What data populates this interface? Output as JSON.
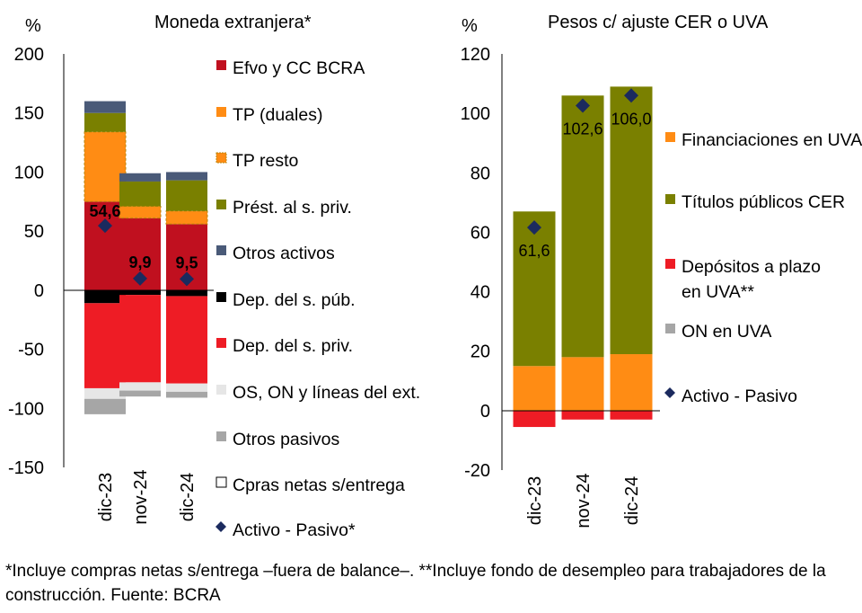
{
  "colors": {
    "efvo": "#C0101F",
    "tp_duales": "#FF8C14",
    "tp_resto": "#FF8C14",
    "prest": "#7A8000",
    "otros_activos": "#4A5A78",
    "dep_pub": "#000000",
    "dep_priv": "#EE1C25",
    "os_on": "#E6E6E6",
    "otros_pasivos": "#A6A6A6",
    "cpras": "#FFFFFF",
    "marker": "#1B2A5E",
    "fin_uva": "#FF8C14",
    "titulos_cer": "#7A8000",
    "dep_plazo_uva": "#EE1C25",
    "on_uva": "#A6A6A6"
  },
  "chart_data": [
    {
      "type": "bar",
      "stacked": true,
      "title": "Moneda extranjera*",
      "ylabel": "%",
      "ylim": [
        -150,
        200
      ],
      "yticks": [
        -150,
        -100,
        -50,
        0,
        50,
        100,
        150,
        200
      ],
      "categories": [
        "dic-23",
        "nov-24",
        "dic-24"
      ],
      "legend_position": "right",
      "series": [
        {
          "name": "Efvo y CC BCRA",
          "key": "efvo",
          "values": [
            75,
            61,
            56
          ]
        },
        {
          "name": "TP (duales)",
          "key": "tp_duales",
          "values": [
            0,
            0,
            0
          ]
        },
        {
          "name": "TP resto",
          "key": "tp_resto",
          "values": [
            59,
            10,
            11
          ]
        },
        {
          "name": "Prést. al s. priv.",
          "key": "prest",
          "values": [
            16,
            21,
            26
          ]
        },
        {
          "name": "Otros activos",
          "key": "otros_activos",
          "values": [
            10,
            7,
            7
          ]
        },
        {
          "name": "Dep. del s. púb.",
          "key": "dep_pub",
          "values": [
            -11,
            -4,
            -5
          ]
        },
        {
          "name": "Dep. del s. priv.",
          "key": "dep_priv",
          "values": [
            -72,
            -74,
            -74
          ]
        },
        {
          "name": "OS, ON y líneas del ext.",
          "key": "os_on",
          "values": [
            -9,
            -7,
            -7
          ]
        },
        {
          "name": "Otros pasivos",
          "key": "otros_pasivos",
          "values": [
            -13,
            -5,
            -5
          ]
        },
        {
          "name": "Cpras netas s/entrega",
          "key": "cpras",
          "values": [
            0,
            0,
            0
          ]
        }
      ],
      "marker_series": {
        "name": "Activo - Pasivo*",
        "values": [
          54.6,
          9.9,
          9.5
        ],
        "labels": [
          "54,6",
          "9,9",
          "9,5"
        ]
      }
    },
    {
      "type": "bar",
      "stacked": true,
      "title": "Pesos c/ ajuste  CER o UVA",
      "ylabel": "%",
      "ylim": [
        -20,
        120
      ],
      "yticks": [
        -20,
        0,
        20,
        40,
        60,
        80,
        100,
        120
      ],
      "categories": [
        "dic-23",
        "nov-24",
        "dic-24"
      ],
      "legend_position": "right",
      "series": [
        {
          "name": "Financiaciones en UVA",
          "key": "fin_uva",
          "values": [
            15,
            18,
            19
          ]
        },
        {
          "name": "Títulos públicos CER",
          "key": "titulos_cer",
          "values": [
            52,
            88,
            90
          ]
        },
        {
          "name": "Depósitos a plazo en UVA**",
          "key": "dep_plazo_uva",
          "values": [
            -5.5,
            -3,
            -3
          ]
        },
        {
          "name": "ON en UVA",
          "key": "on_uva",
          "values": [
            0,
            0,
            0
          ]
        }
      ],
      "marker_series": {
        "name": "Activo - Pasivo",
        "values": [
          61.6,
          102.6,
          106.0
        ],
        "labels": [
          "61,6",
          "102,6",
          "106,0"
        ]
      }
    }
  ],
  "footnote": "*Incluye compras netas s/entrega –fuera de balance–. **Incluye fondo de desempleo para trabajadores de la construcción. Fuente: BCRA"
}
